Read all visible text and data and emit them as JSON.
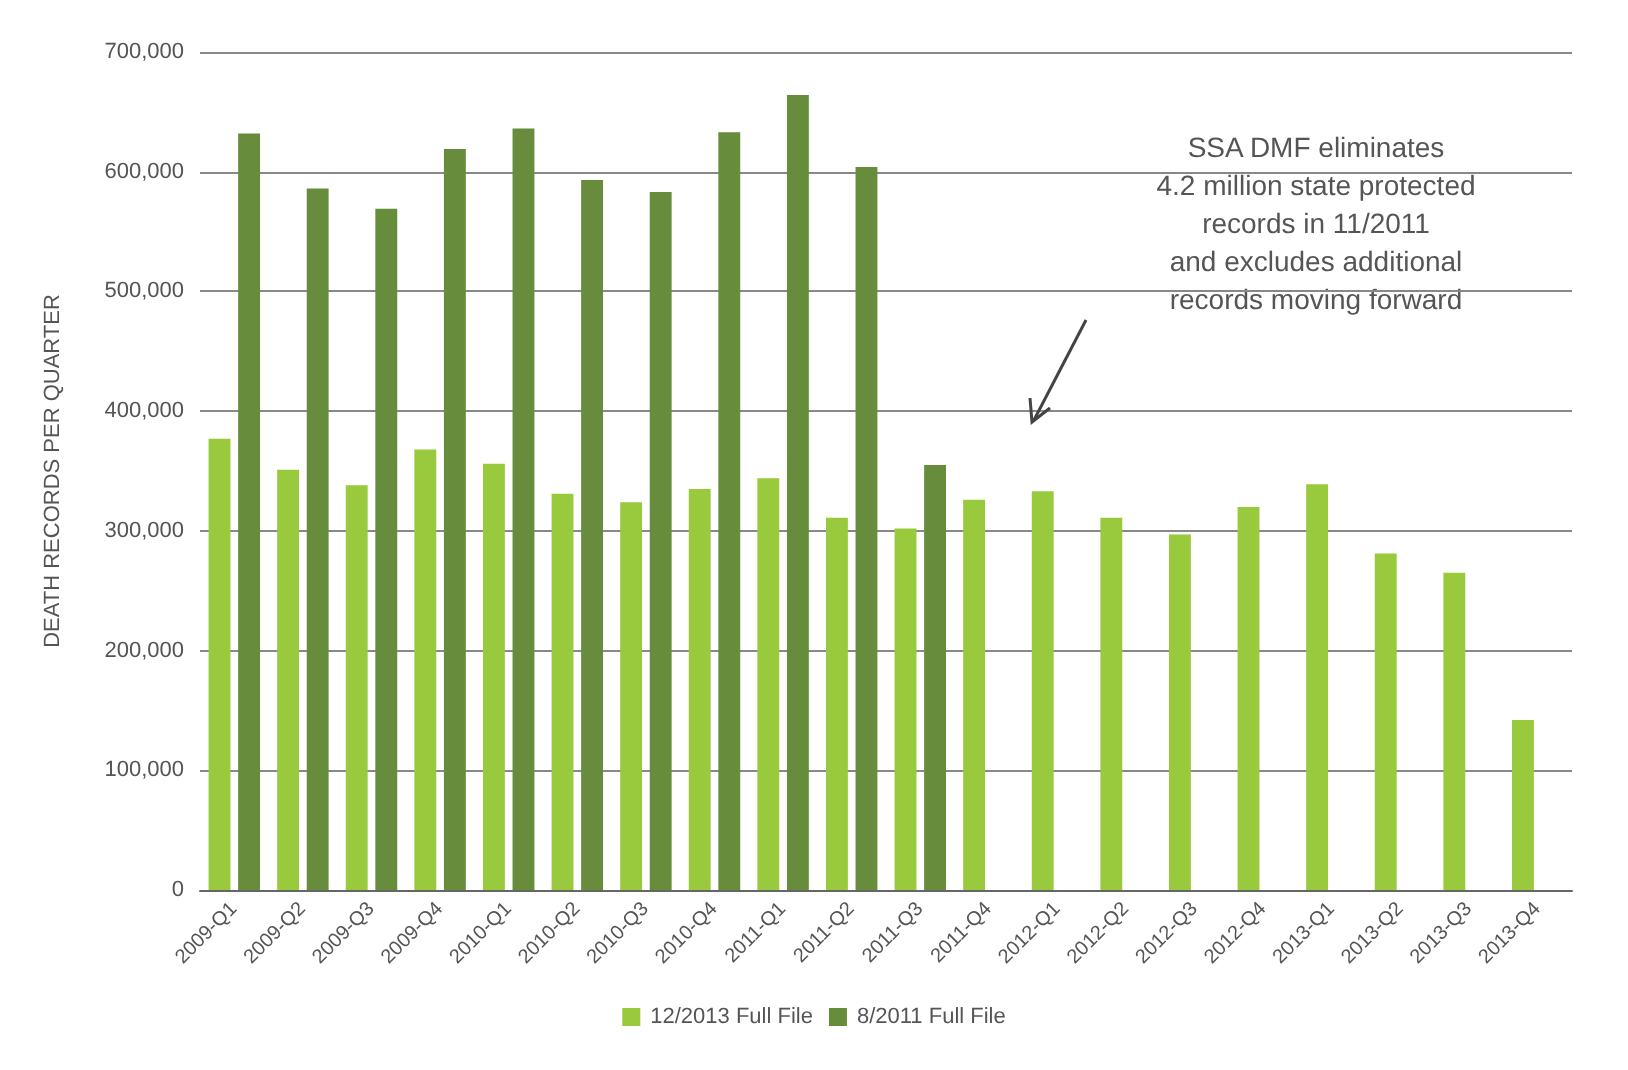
{
  "chart_data": {
    "type": "bar",
    "ylabel": "DEATH RECORDS PER QUARTER",
    "categories": [
      "2009-Q1",
      "2009-Q2",
      "2009-Q3",
      "2009-Q4",
      "2010-Q1",
      "2010-Q2",
      "2010-Q3",
      "2010-Q4",
      "2011-Q1",
      "2011-Q2",
      "2011-Q3",
      "2011-Q4",
      "2012-Q1",
      "2012-Q2",
      "2012-Q3",
      "2012-Q4",
      "2013-Q1",
      "2013-Q2",
      "2013-Q3",
      "2013-Q4"
    ],
    "series": [
      {
        "name": "12/2013 Full File",
        "color": "#99c93c",
        "values": [
          377000,
          351000,
          338000,
          368000,
          356000,
          331000,
          324000,
          335000,
          344000,
          311000,
          302000,
          326000,
          333000,
          311000,
          297000,
          320000,
          339000,
          281000,
          265000,
          142000
        ]
      },
      {
        "name": "8/2011 Full File",
        "color": "#678d3c",
        "values": [
          632000,
          586000,
          569000,
          619000,
          636000,
          593000,
          583000,
          633000,
          664000,
          604000,
          355000,
          null,
          null,
          null,
          null,
          null,
          null,
          null,
          null,
          null
        ]
      }
    ],
    "ylim": [
      0,
      700000
    ],
    "yticks": [
      0,
      {
        "value": 100000,
        "label": "100,000"
      },
      {
        "value": 200000,
        "label": "200,000"
      },
      {
        "value": 300000,
        "label": "300,000"
      },
      {
        "value": 400000,
        "label": "400,000"
      },
      {
        "value": 500000,
        "label": "500,000"
      },
      {
        "value": 600000,
        "label": "600,000"
      },
      {
        "value": 700000,
        "label": "700,000"
      }
    ],
    "grid": "y",
    "legend": "bottom",
    "annotations": [
      "SSA DMF eliminates\n4.2 million state protected\nrecords in 11/2011\nand excludes additional\nrecords moving forward"
    ]
  }
}
